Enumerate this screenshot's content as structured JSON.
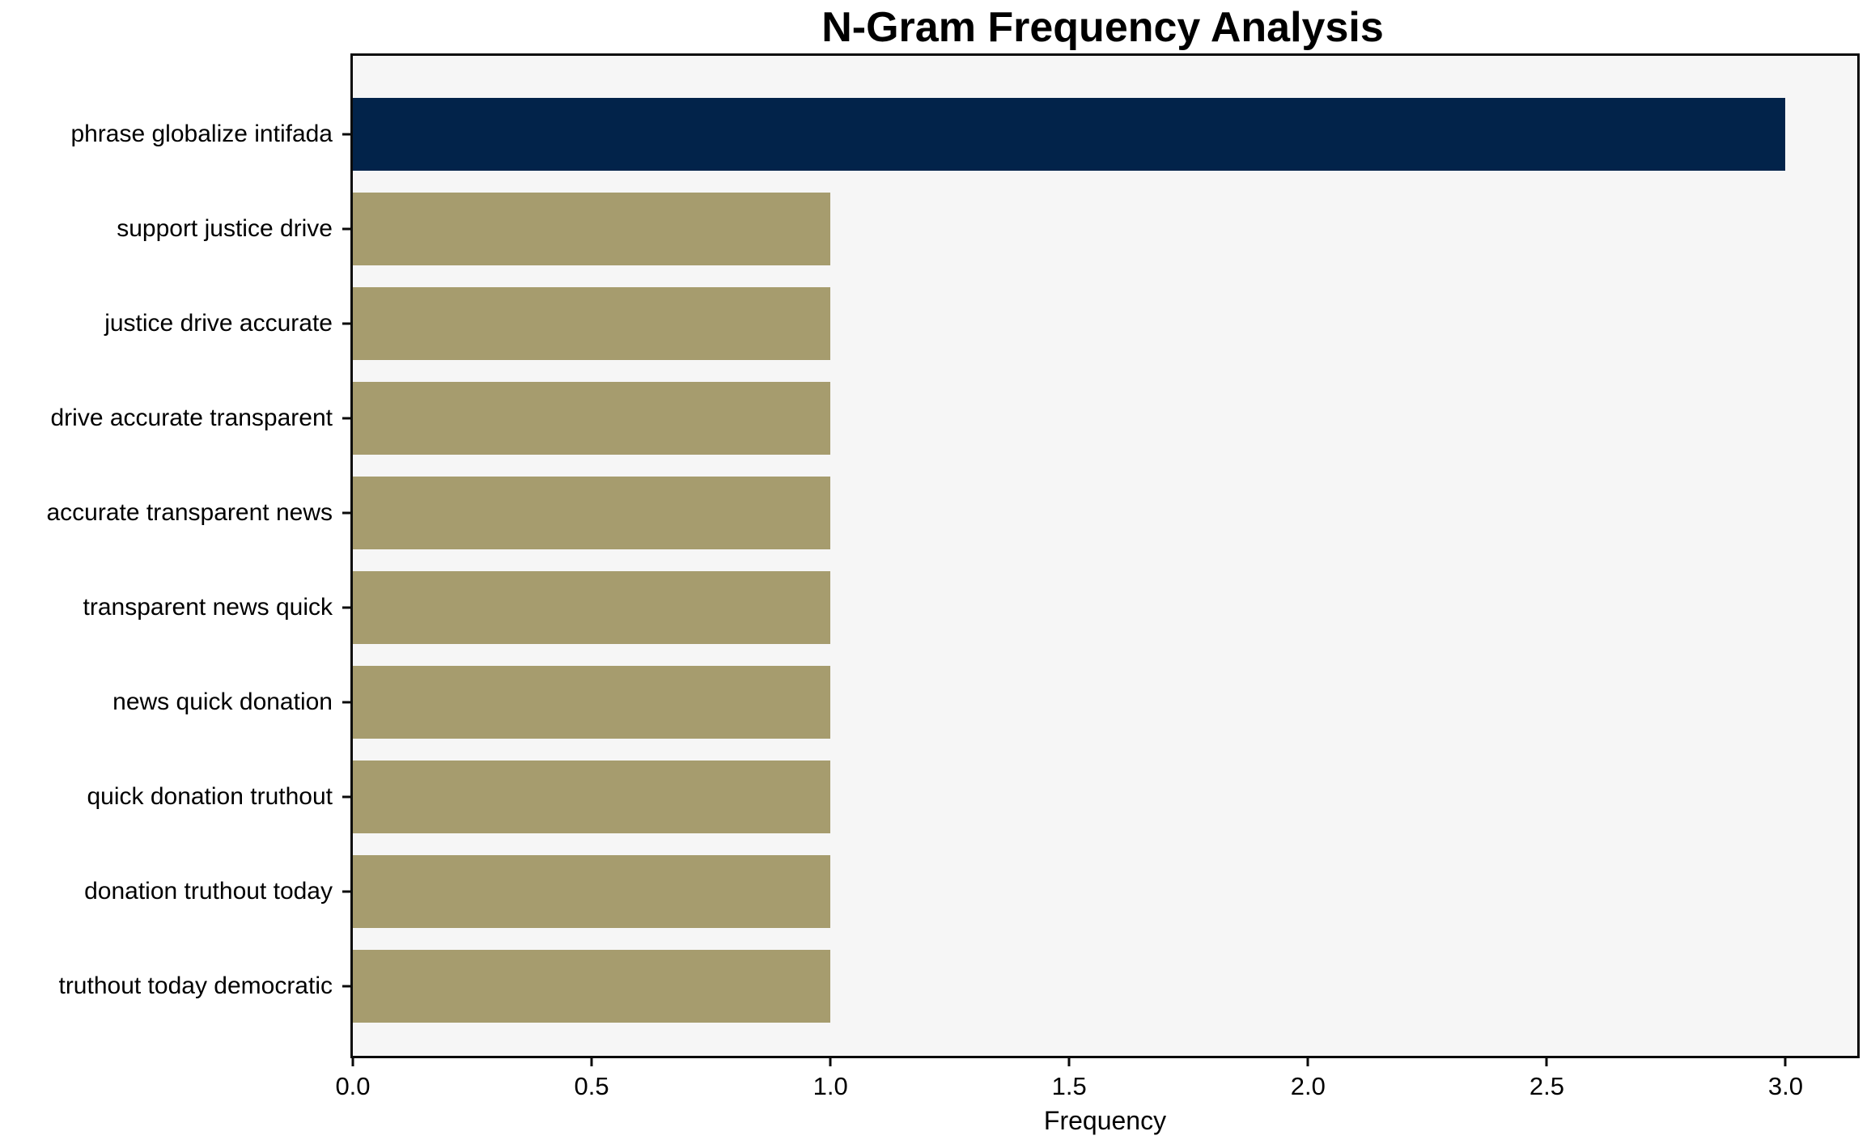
{
  "title": "N-Gram Frequency Analysis",
  "chart_data": {
    "type": "bar",
    "orientation": "horizontal",
    "title": "N-Gram Frequency Analysis",
    "categories": [
      "phrase globalize intifada",
      "support justice drive",
      "justice drive accurate",
      "drive accurate transparent",
      "accurate transparent news",
      "transparent news quick",
      "news quick donation",
      "quick donation truthout",
      "donation truthout today",
      "truthout today democratic"
    ],
    "values": [
      3,
      1,
      1,
      1,
      1,
      1,
      1,
      1,
      1,
      1
    ],
    "bar_colors": [
      "#02234a",
      "#a69c6e",
      "#a69c6e",
      "#a69c6e",
      "#a69c6e",
      "#a69c6e",
      "#a69c6e",
      "#a69c6e",
      "#a69c6e",
      "#a69c6e"
    ],
    "highlight_color": "#02234a",
    "default_color": "#a69c6e",
    "xlabel": "Frequency",
    "ylabel": "",
    "xticks": [
      0.0,
      0.5,
      1.0,
      1.5,
      2.0,
      2.5,
      3.0
    ],
    "xtick_labels": [
      "0.0",
      "0.5",
      "1.0",
      "1.5",
      "2.0",
      "2.5",
      "3.0"
    ],
    "xlim": [
      0,
      3.15
    ],
    "grid": false,
    "legend_position": "none",
    "plot_background": "#f6f6f6",
    "figure_background": "#ffffff",
    "spine_color": "#0a0a0a"
  }
}
